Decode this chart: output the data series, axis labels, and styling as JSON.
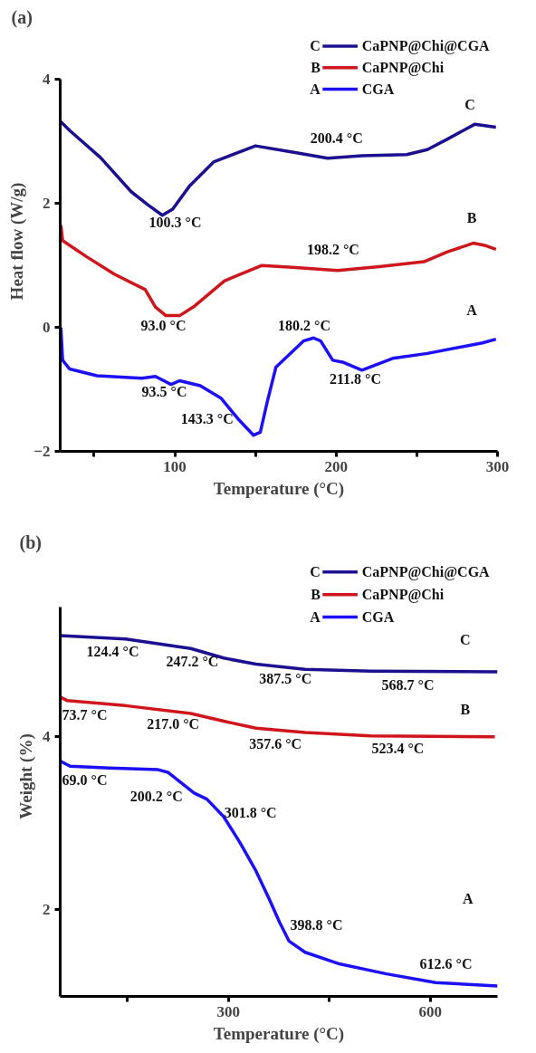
{
  "chart_data": [
    {
      "type": "line",
      "title": "(a)",
      "xlabel": "Temperature (°C)",
      "ylabel": "Heat flow (W/g)",
      "xlim": [
        29,
        300
      ],
      "ylim": [
        -2,
        4
      ],
      "xticks": [
        {
          "value": 50,
          "label": null
        },
        100,
        {
          "value": 150,
          "label": null
        },
        200,
        {
          "value": 250,
          "label": null
        },
        300
      ],
      "yticks": [
        -2,
        0,
        2,
        4
      ],
      "legend": "top right",
      "series": [
        {
          "name": "CaPNP@Chi@CGA",
          "color": "#1c1090",
          "x": [
            29.4,
            34.8,
            54,
            73,
            83.8,
            92.3,
            98.7,
            109.4,
            124,
            150,
            173,
            194.7,
            216,
            243.7,
            256.5,
            269,
            286,
            299
          ],
          "values": [
            3.32,
            3.18,
            2.74,
            2.19,
            1.97,
            1.81,
            1.91,
            2.29,
            2.67,
            2.93,
            2.83,
            2.73,
            2.77,
            2.79,
            2.87,
            3.04,
            3.28,
            3.23
          ]
        },
        {
          "name": "CaPNP@Chi",
          "color": "#d0161d",
          "x": [
            29.4,
            30.5,
            45.4,
            62.5,
            81.7,
            88,
            94.5,
            103,
            111.5,
            130.7,
            154,
            173,
            201,
            226.7,
            254.4,
            269,
            285,
            292.7,
            299
          ],
          "values": [
            1.65,
            1.4,
            1.14,
            0.86,
            0.61,
            0.33,
            0.19,
            0.19,
            0.33,
            0.75,
            1.0,
            0.97,
            0.92,
            0.98,
            1.06,
            1.22,
            1.36,
            1.32,
            1.26
          ]
        },
        {
          "name": "CGA",
          "color": "#1e10f5",
          "x": [
            29.4,
            30.5,
            34.8,
            51.8,
            79.5,
            88,
            97.7,
            103,
            115.8,
            128.6,
            139,
            148.8,
            153,
            157.4,
            162.7,
            179.7,
            186,
            190.4,
            197.9,
            204,
            216,
            235,
            256.5,
            290.6,
            299
          ],
          "values": [
            0,
            -0.53,
            -0.67,
            -0.78,
            -0.82,
            -0.79,
            -0.92,
            -0.86,
            -0.94,
            -1.14,
            -1.47,
            -1.74,
            -1.69,
            -1.19,
            -0.64,
            -0.22,
            -0.17,
            -0.22,
            -0.53,
            -0.56,
            -0.69,
            -0.5,
            -0.42,
            -0.25,
            -0.19
          ]
        }
      ],
      "annotations": [
        "C",
        "B",
        "A",
        "100.3 °C",
        "200.4 °C",
        "198.2 °C",
        "93.0 °C",
        "93.5 °C",
        "143.3 °C",
        "180.2 °C",
        "211.8 °C",
        "C",
        "B",
        "A"
      ]
    },
    {
      "type": "line",
      "title": "(b)",
      "xlabel": "Temperature (°C)",
      "ylabel": "Weight (%)",
      "xlim": [
        50,
        700
      ],
      "ylim": [
        1,
        5.5
      ],
      "xticks": [
        {
          "value": 150,
          "label": null
        },
        300,
        {
          "value": 450,
          "label": null
        },
        600
      ],
      "yticks": [
        2,
        4
      ],
      "legend": "top right",
      "series": [
        {
          "name": "CaPNP@Chi@CGA",
          "color": "#1c1090",
          "x": [
            50,
            147,
            244,
            293,
            341,
            414,
            511,
            700
          ],
          "values": [
            5.17,
            5.13,
            5.02,
            4.91,
            4.84,
            4.78,
            4.76,
            4.75
          ]
        },
        {
          "name": "CaPNP@Chi",
          "color": "#d0161d",
          "x": [
            50,
            60,
            147,
            244,
            293,
            341,
            414,
            511,
            696
          ],
          "values": [
            4.46,
            4.42,
            4.36,
            4.27,
            4.18,
            4.1,
            4.05,
            4.01,
            4.0
          ]
        },
        {
          "name": "CGA",
          "color": "#1e10f5",
          "x": [
            50,
            64.6,
            122.8,
            195.6,
            210,
            249,
            268,
            292.7,
            317,
            341,
            361,
            375.8,
            390,
            414,
            463,
            535,
            608,
            700
          ],
          "values": [
            3.72,
            3.66,
            3.64,
            3.62,
            3.59,
            3.35,
            3.28,
            3.08,
            2.78,
            2.45,
            2.12,
            1.86,
            1.64,
            1.51,
            1.38,
            1.26,
            1.16,
            1.12
          ]
        }
      ],
      "annotations": [
        "C",
        "B",
        "A",
        "124.4 °C",
        "247.2 °C",
        "387.5 °C",
        "568.7 °C",
        "73.7 °C",
        "217.0 °C",
        "357.6 °C",
        "523.4 °C",
        "69.0 °C",
        "200.2 °C",
        "301.8 °C",
        "398.8 °C",
        "612.6 °C",
        "C",
        "B",
        "A"
      ]
    }
  ]
}
